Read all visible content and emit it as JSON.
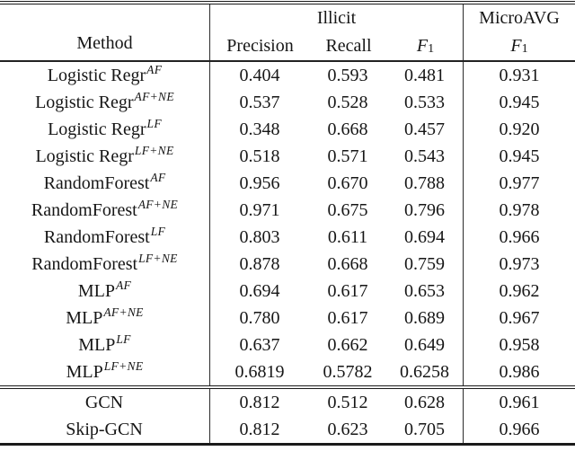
{
  "colors": {
    "background": "#ffffff",
    "text": "#161616",
    "rule": "#222222"
  },
  "table": {
    "header": {
      "method": "Method",
      "illicit_group": "Illicit",
      "microavg_group": "MicroAVG",
      "precision": "Precision",
      "recall": "Recall",
      "f1_base": "F",
      "f1_sub": "1"
    },
    "rows": [
      {
        "method_base": "Logistic Regr",
        "method_sup": "AF",
        "precision": "0.404",
        "recall": "0.593",
        "f1": "0.481",
        "microavg_f1": "0.931"
      },
      {
        "method_base": "Logistic Regr",
        "method_sup": "AF+NE",
        "precision": "0.537",
        "recall": "0.528",
        "f1": "0.533",
        "microavg_f1": "0.945"
      },
      {
        "method_base": "Logistic Regr",
        "method_sup": "LF",
        "precision": "0.348",
        "recall": "0.668",
        "f1": "0.457",
        "microavg_f1": "0.920"
      },
      {
        "method_base": "Logistic Regr",
        "method_sup": "LF+NE",
        "precision": "0.518",
        "recall": "0.571",
        "f1": "0.543",
        "microavg_f1": "0.945"
      },
      {
        "method_base": "RandomForest",
        "method_sup": "AF",
        "precision": "0.956",
        "recall": "0.670",
        "f1": "0.788",
        "microavg_f1": "0.977"
      },
      {
        "method_base": "RandomForest",
        "method_sup": "AF+NE",
        "precision": "0.971",
        "recall": "0.675",
        "f1": "0.796",
        "microavg_f1": "0.978"
      },
      {
        "method_base": "RandomForest",
        "method_sup": "LF",
        "precision": "0.803",
        "recall": "0.611",
        "f1": "0.694",
        "microavg_f1": "0.966"
      },
      {
        "method_base": "RandomForest",
        "method_sup": "LF+NE",
        "precision": "0.878",
        "recall": "0.668",
        "f1": "0.759",
        "microavg_f1": "0.973"
      },
      {
        "method_base": "MLP",
        "method_sup": "AF",
        "precision": "0.694",
        "recall": "0.617",
        "f1": "0.653",
        "microavg_f1": "0.962"
      },
      {
        "method_base": "MLP",
        "method_sup": "AF+NE",
        "precision": "0.780",
        "recall": "0.617",
        "f1": "0.689",
        "microavg_f1": "0.967"
      },
      {
        "method_base": "MLP",
        "method_sup": "LF",
        "precision": "0.637",
        "recall": "0.662",
        "f1": "0.649",
        "microavg_f1": "0.958"
      },
      {
        "method_base": "MLP",
        "method_sup": "LF+NE",
        "precision": "0.6819",
        "recall": "0.5782",
        "f1": "0.6258",
        "microavg_f1": "0.986"
      },
      {
        "method_base": "GCN",
        "method_sup": "",
        "precision": "0.812",
        "recall": "0.512",
        "f1": "0.628",
        "microavg_f1": "0.961"
      },
      {
        "method_base": "Skip-GCN",
        "method_sup": "",
        "precision": "0.812",
        "recall": "0.623",
        "f1": "0.705",
        "microavg_f1": "0.966"
      }
    ]
  }
}
